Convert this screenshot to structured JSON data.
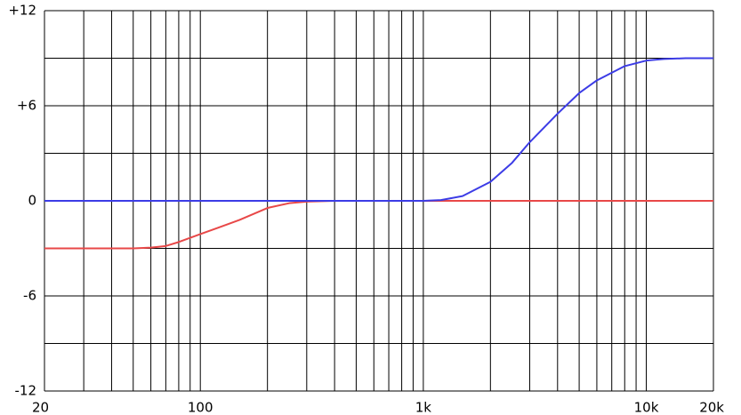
{
  "chart_data": {
    "type": "line",
    "x": [
      20,
      30,
      40,
      50,
      60,
      70,
      80,
      100,
      120,
      150,
      200,
      250,
      300,
      400,
      500,
      700,
      1000,
      1200,
      1500,
      2000,
      2500,
      3000,
      4000,
      5000,
      6000,
      8000,
      10000,
      12000,
      15000,
      20000
    ],
    "series": [
      {
        "color": "#e84848",
        "values": [
          -3,
          -3,
          -3,
          -3,
          -2.95,
          -2.85,
          -2.6,
          -2.1,
          -1.7,
          -1.2,
          -0.45,
          -0.15,
          -0.05,
          0,
          0,
          0,
          0,
          0,
          0,
          0,
          0,
          0,
          0,
          0,
          0,
          0,
          0,
          0,
          0,
          0
        ]
      },
      {
        "color": "#3c3ce6",
        "values": [
          0,
          0,
          0,
          0,
          0,
          0,
          0,
          0,
          0,
          0,
          0,
          0,
          0,
          0,
          0,
          0,
          0,
          0.05,
          0.3,
          1.2,
          2.4,
          3.7,
          5.5,
          6.8,
          7.6,
          8.5,
          8.85,
          8.95,
          9,
          9
        ]
      }
    ],
    "log_x": true,
    "xlim": [
      20,
      20000
    ],
    "xticks": [
      20,
      100,
      {
        "value": 1000,
        "label": "1k"
      },
      {
        "value": 10000,
        "label": "10k"
      },
      {
        "value": 20000,
        "label": "20k"
      }
    ],
    "xgrid": [
      20,
      30,
      40,
      50,
      60,
      70,
      80,
      90,
      100,
      200,
      300,
      400,
      500,
      600,
      700,
      800,
      900,
      1000,
      2000,
      3000,
      4000,
      5000,
      6000,
      7000,
      8000,
      9000,
      10000,
      20000
    ],
    "ylim": [
      -12,
      12
    ],
    "yticks": [
      {
        "value": 12,
        "label": "+12"
      },
      {
        "value": 6,
        "label": "+6"
      },
      0,
      -6,
      -12
    ],
    "ygrid": [
      -12,
      -9,
      -6,
      -3,
      0,
      3,
      6,
      9,
      12
    ],
    "grid": true
  }
}
